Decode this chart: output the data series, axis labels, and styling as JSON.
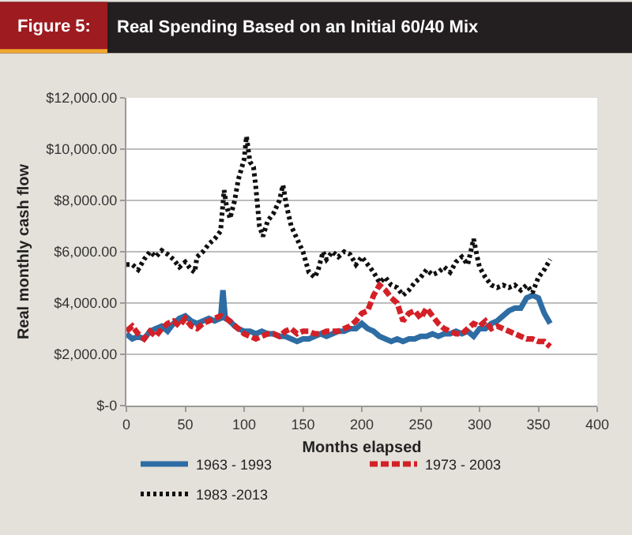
{
  "chart_data": {
    "type": "line",
    "title": "Real Spending Based on an Initial 60/40 Mix",
    "annotations": [
      "Figure 5:"
    ],
    "xlabel": "Months elapsed",
    "ylabel": "Real monthly cash flow",
    "xlim": [
      0,
      400
    ],
    "xticks": [
      0,
      50,
      100,
      150,
      200,
      250,
      300,
      350,
      400
    ],
    "ylim": [
      0,
      12000
    ],
    "yticks": [
      {
        "value": 0,
        "label": "$-0"
      },
      {
        "value": 2000,
        "label": "$2,000.00"
      },
      {
        "value": 4000,
        "label": "$4,000.00"
      },
      {
        "value": 6000,
        "label": "$6,000.00"
      },
      {
        "value": 8000,
        "label": "$8,000.00"
      },
      {
        "value": 10000,
        "label": "$10,000.00"
      },
      {
        "value": 12000,
        "label": "$12,000.00"
      }
    ],
    "grid": "y",
    "legend": "bottom",
    "series": [
      {
        "name": "1963 - 1993",
        "color": "#2e6da4",
        "line_style": "solid",
        "x": [
          0,
          5,
          10,
          15,
          20,
          25,
          30,
          35,
          40,
          45,
          50,
          55,
          60,
          65,
          70,
          75,
          80,
          82,
          84,
          88,
          92,
          95,
          100,
          105,
          110,
          115,
          120,
          125,
          130,
          135,
          140,
          145,
          150,
          155,
          160,
          165,
          170,
          175,
          180,
          185,
          190,
          195,
          200,
          205,
          210,
          215,
          220,
          225,
          230,
          235,
          240,
          245,
          250,
          255,
          260,
          265,
          270,
          275,
          280,
          285,
          290,
          295,
          300,
          305,
          310,
          315,
          320,
          325,
          330,
          335,
          340,
          345,
          350,
          355,
          360
        ],
        "values": [
          2800,
          2600,
          2700,
          2600,
          2900,
          3000,
          3100,
          2900,
          3200,
          3400,
          3500,
          3300,
          3200,
          3300,
          3400,
          3300,
          3400,
          4500,
          3400,
          3300,
          3100,
          3000,
          2900,
          2900,
          2800,
          2900,
          2800,
          2800,
          2700,
          2700,
          2600,
          2500,
          2600,
          2600,
          2700,
          2800,
          2700,
          2800,
          2900,
          2900,
          3000,
          3000,
          3200,
          3000,
          2900,
          2700,
          2600,
          2500,
          2600,
          2500,
          2600,
          2600,
          2700,
          2700,
          2800,
          2700,
          2800,
          2800,
          2900,
          2800,
          2900,
          2700,
          3000,
          3000,
          3200,
          3300,
          3500,
          3700,
          3800,
          3800,
          4200,
          4300,
          4200,
          3600,
          3200
        ]
      },
      {
        "name": "1973 - 2003",
        "color": "#d42027",
        "line_style": "dashed",
        "x": [
          0,
          5,
          10,
          15,
          20,
          25,
          30,
          35,
          40,
          45,
          50,
          55,
          60,
          65,
          70,
          75,
          80,
          85,
          90,
          95,
          100,
          105,
          110,
          115,
          120,
          125,
          130,
          135,
          140,
          145,
          150,
          155,
          160,
          165,
          170,
          175,
          180,
          185,
          190,
          195,
          200,
          205,
          210,
          215,
          220,
          225,
          230,
          235,
          240,
          245,
          250,
          255,
          260,
          265,
          270,
          275,
          280,
          285,
          290,
          295,
          300,
          305,
          310,
          315,
          320,
          325,
          330,
          335,
          340,
          345,
          350,
          355,
          360
        ],
        "values": [
          2900,
          3100,
          2800,
          2600,
          2900,
          2700,
          3000,
          3200,
          3300,
          3100,
          3400,
          3100,
          3000,
          3200,
          3300,
          3400,
          3500,
          3400,
          3200,
          3000,
          2800,
          2700,
          2600,
          2700,
          2800,
          2800,
          2700,
          2900,
          3000,
          2800,
          2900,
          2900,
          2800,
          2800,
          2900,
          2900,
          2900,
          3000,
          3100,
          3300,
          3600,
          3700,
          4300,
          4700,
          4500,
          4200,
          4000,
          3300,
          3600,
          3700,
          3400,
          3800,
          3500,
          3200,
          3000,
          2900,
          2800,
          2800,
          3000,
          3200,
          3100,
          3300,
          3000,
          3100,
          3000,
          2900,
          2800,
          2700,
          2600,
          2600,
          2500,
          2500,
          2300
        ]
      },
      {
        "name": "1983 -2013",
        "color": "#111111",
        "line_style": "dotted",
        "x": [
          0,
          5,
          10,
          15,
          20,
          25,
          30,
          35,
          40,
          45,
          50,
          55,
          58,
          60,
          65,
          70,
          75,
          80,
          83,
          85,
          88,
          92,
          95,
          100,
          102,
          105,
          108,
          110,
          113,
          116,
          120,
          125,
          130,
          133,
          136,
          140,
          145,
          150,
          155,
          160,
          163,
          167,
          170,
          175,
          180,
          185,
          190,
          195,
          200,
          205,
          210,
          215,
          220,
          225,
          230,
          235,
          240,
          245,
          250,
          255,
          260,
          265,
          270,
          275,
          280,
          285,
          290,
          295,
          298,
          300,
          305,
          310,
          315,
          320,
          325,
          330,
          335,
          340,
          345,
          350,
          355,
          360
        ],
        "values": [
          5500,
          5500,
          5300,
          5700,
          6000,
          5800,
          6050,
          5900,
          5700,
          5400,
          5600,
          5300,
          5200,
          5800,
          6000,
          6300,
          6500,
          6800,
          8400,
          7800,
          7300,
          8000,
          8800,
          9600,
          10500,
          9500,
          9300,
          8500,
          7000,
          6600,
          7200,
          7500,
          8000,
          8600,
          7800,
          7000,
          6500,
          6000,
          5200,
          5000,
          5300,
          6000,
          5700,
          6000,
          5800,
          6000,
          5900,
          5500,
          5800,
          5500,
          5200,
          4800,
          5000,
          4700,
          4600,
          4300,
          4500,
          4800,
          5000,
          5300,
          5100,
          5200,
          5400,
          5200,
          5600,
          5800,
          5500,
          6500,
          5800,
          5400,
          5000,
          4700,
          4600,
          4700,
          4600,
          4700,
          4500,
          4700,
          4400,
          5000,
          5300,
          5700
        ]
      }
    ]
  }
}
